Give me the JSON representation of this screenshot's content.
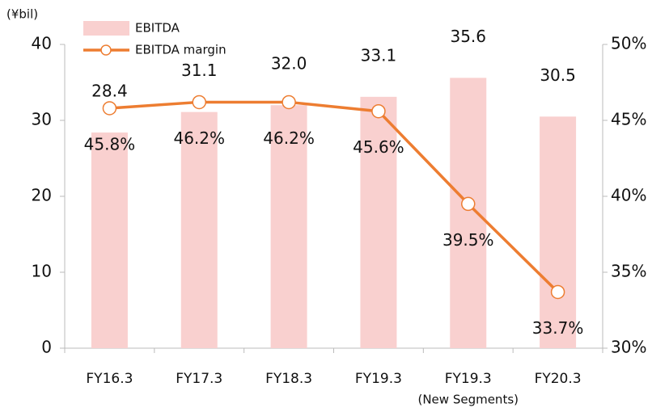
{
  "chart_data": {
    "type": "bar_line",
    "y_label": "(¥bil)",
    "categories": [
      "FY16.3",
      "FY17.3",
      "FY18.3",
      "FY19.3",
      "FY19.3",
      "FY20.3"
    ],
    "category_sublabels": [
      null,
      null,
      null,
      null,
      "(New Segments)",
      null
    ],
    "series": [
      {
        "name": "EBITDA",
        "type": "bar",
        "color": "#f9d0cf",
        "values": [
          28.4,
          31.1,
          32.0,
          33.1,
          35.6,
          30.5
        ],
        "value_labels": [
          "28.4",
          "31.1",
          "32.0",
          "33.1",
          "35.6",
          "30.5"
        ]
      },
      {
        "name": "EBITDA margin",
        "type": "line",
        "axis": "y2",
        "color": "#ed7d31",
        "values": [
          45.8,
          46.2,
          46.2,
          45.6,
          39.5,
          33.7
        ],
        "value_labels": [
          "45.8%",
          "46.2%",
          "46.2%",
          "45.6%",
          "39.5%",
          "33.7%"
        ]
      }
    ],
    "ylim": [
      0,
      40
    ],
    "yticks": [
      0,
      10,
      20,
      30,
      40
    ],
    "y2lim": [
      30,
      50
    ],
    "y2ticks": [
      {
        "value": 30,
        "label": "30%"
      },
      {
        "value": 35,
        "label": "35%"
      },
      {
        "value": 40,
        "label": "40%"
      },
      {
        "value": 45,
        "label": "45%"
      },
      {
        "value": 50,
        "label": "50%"
      }
    ]
  }
}
